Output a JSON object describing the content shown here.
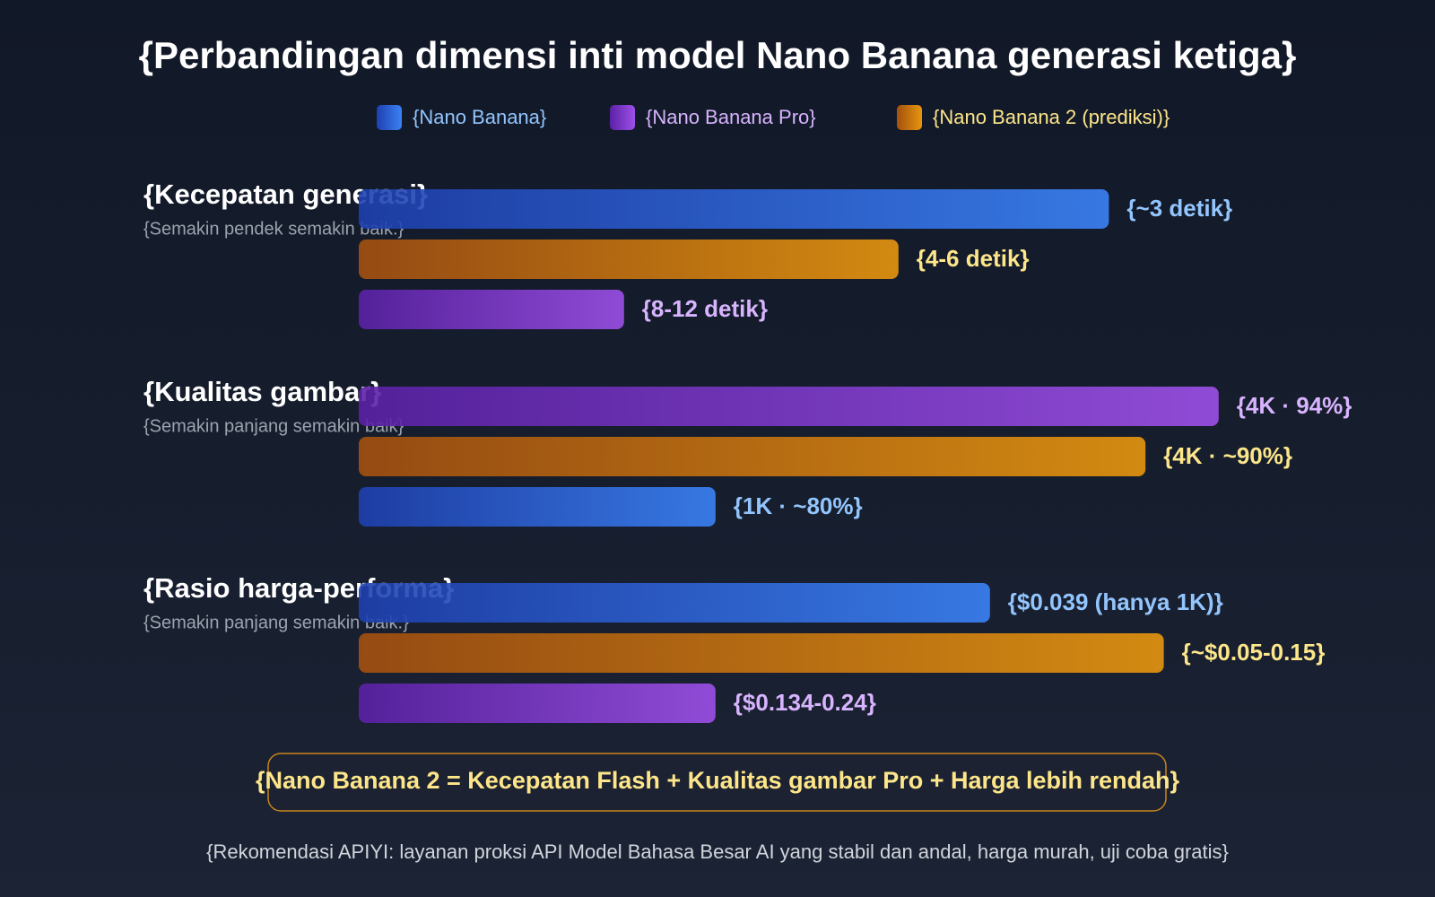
{
  "chart_data": {
    "type": "bar",
    "title": "{Perbandingan dimensi inti model Nano Banana generasi ketiga}",
    "series": [
      {
        "name": "{Nano Banana}",
        "colors": [
          "#1e40af",
          "#3b82f6"
        ],
        "label_color": "#93c5fd"
      },
      {
        "name": "{Nano Banana Pro}",
        "colors": [
          "#5b21a6",
          "#9d50e8"
        ],
        "label_color": "#d8b4fe"
      },
      {
        "name": "{Nano Banana 2 (prediksi)}",
        "colors": [
          "#a3500f",
          "#e8960e"
        ],
        "label_color": "#fde68a"
      }
    ],
    "xlim": [
      0,
      100
    ],
    "groups": [
      {
        "title": "{Kecepatan generasi}",
        "subtitle": "{Semakin pendek semakin baik.}",
        "bars": [
          {
            "series": 0,
            "value": 82,
            "label": "{~3 detik}"
          },
          {
            "series": 2,
            "value": 59,
            "label": "{4-6 detik}"
          },
          {
            "series": 1,
            "value": 29,
            "label": "{8-12 detik}"
          }
        ]
      },
      {
        "title": "{Kualitas gambar}",
        "subtitle": "{Semakin panjang semakin baik}",
        "bars": [
          {
            "series": 1,
            "value": 94,
            "label": "{4K · 94%}"
          },
          {
            "series": 2,
            "value": 86,
            "label": "{4K · ~90%}"
          },
          {
            "series": 0,
            "value": 39,
            "label": "{1K · ~80%}"
          }
        ]
      },
      {
        "title": "{Rasio harga-performa}",
        "subtitle": "{Semakin panjang semakin baik.}",
        "bars": [
          {
            "series": 0,
            "value": 69,
            "label": "{$0.039 (hanya 1K)}"
          },
          {
            "series": 2,
            "value": 88,
            "label": "{~$0.05-0.15}"
          },
          {
            "series": 1,
            "value": 39,
            "label": "{$0.134-0.24}"
          }
        ]
      }
    ],
    "note": "{Nano Banana 2 = Kecepatan Flash + Kualitas gambar Pro + Harga lebih rendah}",
    "footer": "{Rekomendasi APIYI: layanan proksi API Model Bahasa Besar AI yang stabil dan andal, harga murah, uji coba gratis}"
  }
}
